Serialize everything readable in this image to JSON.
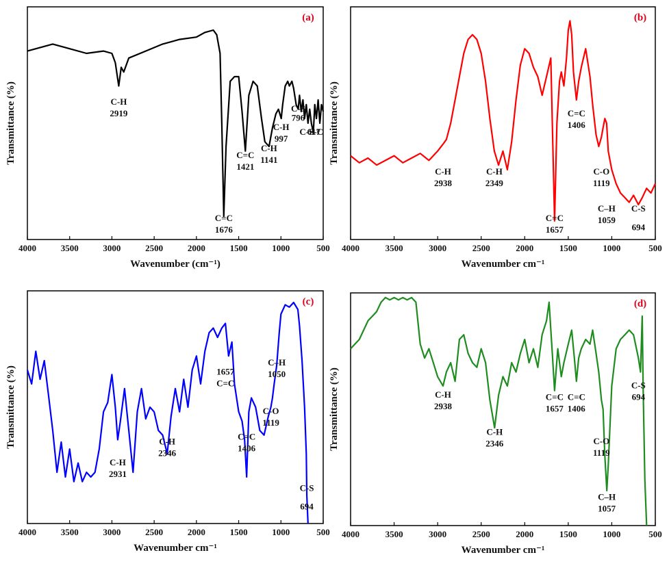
{
  "chart_data": [
    {
      "type": "line",
      "panel_label": "(a)",
      "color": "#000000",
      "xlabel": "Wavenumber (cm⁻¹)",
      "ylabel": "Transmittance (%)",
      "xlim": [
        4000,
        500
      ],
      "ylim": [
        0,
        100
      ],
      "xticks": [
        "4000",
        "3500",
        "3000",
        "2500",
        "2000",
        "1500",
        "1000",
        "500"
      ],
      "series": [
        {
          "x": [
            4000,
            3800,
            3700,
            3500,
            3300,
            3100,
            3000,
            2960,
            2919,
            2890,
            2860,
            2800,
            2600,
            2400,
            2200,
            2000,
            1900,
            1800,
            1760,
            1720,
            1700,
            1676,
            1650,
            1600,
            1550,
            1500,
            1460,
            1421,
            1380,
            1330,
            1280,
            1230,
            1190,
            1141,
            1100,
            1060,
            1030,
            997,
            980,
            950,
            920,
            900,
            870,
            850,
            820,
            796,
            780,
            760,
            740,
            720,
            700,
            680,
            660,
            640,
            617,
            600,
            580,
            560,
            540,
            520,
            500
          ],
          "y": [
            81,
            83,
            84,
            82,
            80,
            81,
            80,
            76,
            66,
            74,
            72,
            78,
            81,
            84,
            86,
            87,
            89,
            90,
            88,
            80,
            50,
            10,
            40,
            68,
            70,
            70,
            55,
            38,
            62,
            68,
            66,
            52,
            42,
            40,
            48,
            54,
            56,
            52,
            58,
            66,
            68,
            66,
            68,
            65,
            58,
            56,
            62,
            55,
            60,
            52,
            58,
            50,
            56,
            50,
            46,
            58,
            52,
            60,
            50,
            58,
            55
          ]
        }
      ],
      "annotations": [
        {
          "text": "C-H",
          "x": 2919,
          "y": 58
        },
        {
          "text": "2919",
          "x": 2919,
          "y": 53
        },
        {
          "text": "C=C",
          "x": 1676,
          "y": 8
        },
        {
          "text": "1676",
          "x": 1676,
          "y": 3
        },
        {
          "text": "C=C",
          "x": 1421,
          "y": 35
        },
        {
          "text": "1421",
          "x": 1421,
          "y": 30
        },
        {
          "text": "C-H",
          "x": 1141,
          "y": 38
        },
        {
          "text": "1141",
          "x": 1141,
          "y": 33
        },
        {
          "text": "C-H",
          "x": 997,
          "y": 47
        },
        {
          "text": "997",
          "x": 997,
          "y": 42
        },
        {
          "text": "C-S",
          "x": 796,
          "y": 55
        },
        {
          "text": "796",
          "x": 796,
          "y": 51
        },
        {
          "text": "C-S-C",
          "x": 640,
          "y": 45
        },
        {
          "text": "617",
          "x": 610,
          "y": 45
        }
      ]
    },
    {
      "type": "line",
      "panel_label": "(b)",
      "color": "#ff0000",
      "xlabel": "Wavenumber cm⁻¹",
      "ylabel": "Transmittance (%)",
      "xlim": [
        4000,
        500
      ],
      "ylim": [
        0,
        100
      ],
      "xticks": [
        "4000",
        "3500",
        "3000",
        "2500",
        "2000",
        "1500",
        "1000",
        "500"
      ],
      "series": [
        {
          "x": [
            4000,
            3900,
            3800,
            3700,
            3600,
            3500,
            3400,
            3300,
            3200,
            3100,
            3000,
            2938,
            2900,
            2850,
            2800,
            2750,
            2700,
            2650,
            2600,
            2550,
            2500,
            2450,
            2400,
            2349,
            2300,
            2250,
            2200,
            2150,
            2100,
            2050,
            2000,
            1950,
            1900,
            1850,
            1800,
            1750,
            1700,
            1657,
            1630,
            1600,
            1580,
            1550,
            1520,
            1500,
            1480,
            1460,
            1440,
            1406,
            1380,
            1350,
            1300,
            1250,
            1220,
            1180,
            1150,
            1119,
            1100,
            1080,
            1059,
            1040,
            1000,
            950,
            900,
            850,
            800,
            750,
            694,
            650,
            600,
            550,
            500
          ],
          "y": [
            36,
            33,
            35,
            32,
            34,
            36,
            33,
            35,
            37,
            34,
            38,
            41,
            43,
            50,
            60,
            70,
            80,
            86,
            88,
            86,
            80,
            68,
            52,
            38,
            32,
            38,
            30,
            42,
            60,
            75,
            82,
            80,
            74,
            70,
            62,
            70,
            78,
            8,
            50,
            68,
            72,
            66,
            78,
            90,
            94,
            88,
            72,
            60,
            68,
            74,
            82,
            70,
            58,
            45,
            40,
            44,
            48,
            52,
            50,
            38,
            30,
            24,
            20,
            18,
            16,
            19,
            15,
            18,
            22,
            20,
            24
          ]
        }
      ],
      "annotations": [
        {
          "text": "C-H",
          "x": 2938,
          "y": 28
        },
        {
          "text": "2938",
          "x": 2938,
          "y": 23
        },
        {
          "text": "C-H",
          "x": 2349,
          "y": 28
        },
        {
          "text": "2349",
          "x": 2349,
          "y": 23
        },
        {
          "text": "C=C",
          "x": 1657,
          "y": 8
        },
        {
          "text": "1657",
          "x": 1657,
          "y": 3
        },
        {
          "text": "C=C",
          "x": 1406,
          "y": 53
        },
        {
          "text": "1406",
          "x": 1406,
          "y": 48
        },
        {
          "text": "C-O",
          "x": 1119,
          "y": 28
        },
        {
          "text": "1119",
          "x": 1119,
          "y": 23
        },
        {
          "text": "C–H",
          "x": 1059,
          "y": 12
        },
        {
          "text": "1059",
          "x": 1059,
          "y": 7
        },
        {
          "text": "C-S",
          "x": 694,
          "y": 12
        },
        {
          "text": "694",
          "x": 694,
          "y": 4
        }
      ]
    },
    {
      "type": "line",
      "panel_label": "(c)",
      "color": "#0000ff",
      "xlabel": "Wavenumber cm⁻¹",
      "ylabel": "Transmittance (%)",
      "xlim": [
        4000,
        500
      ],
      "ylim": [
        0,
        100
      ],
      "xticks": [
        "4000",
        "3500",
        "3000",
        "2500",
        "2000",
        "1500",
        "1000",
        "500"
      ],
      "series": [
        {
          "x": [
            4000,
            3950,
            3900,
            3850,
            3800,
            3750,
            3700,
            3650,
            3600,
            3550,
            3500,
            3450,
            3400,
            3350,
            3300,
            3250,
            3200,
            3150,
            3100,
            3050,
            3000,
            2960,
            2931,
            2900,
            2850,
            2800,
            2750,
            2700,
            2650,
            2600,
            2550,
            2500,
            2450,
            2400,
            2346,
            2300,
            2250,
            2200,
            2150,
            2100,
            2050,
            2000,
            1950,
            1900,
            1850,
            1800,
            1750,
            1700,
            1657,
            1620,
            1580,
            1550,
            1500,
            1460,
            1430,
            1406,
            1380,
            1350,
            1300,
            1250,
            1200,
            1150,
            1119,
            1100,
            1080,
            1050,
            1020,
            1000,
            950,
            900,
            850,
            800,
            780,
            750,
            720,
            700,
            694,
            680
          ],
          "y": [
            66,
            60,
            74,
            62,
            70,
            55,
            40,
            22,
            35,
            20,
            32,
            18,
            26,
            18,
            22,
            20,
            22,
            32,
            48,
            52,
            64,
            50,
            36,
            44,
            58,
            40,
            22,
            48,
            58,
            45,
            50,
            48,
            40,
            38,
            30,
            46,
            58,
            48,
            62,
            50,
            66,
            72,
            60,
            74,
            82,
            84,
            80,
            84,
            86,
            72,
            78,
            60,
            48,
            44,
            36,
            20,
            48,
            54,
            50,
            40,
            38,
            46,
            50,
            54,
            60,
            68,
            82,
            90,
            94,
            93,
            95,
            92,
            85,
            70,
            50,
            30,
            12,
            0
          ]
        }
      ],
      "annotations": [
        {
          "text": "C-H",
          "x": 2931,
          "y": 25
        },
        {
          "text": "2931",
          "x": 2931,
          "y": 20
        },
        {
          "text": "C-H",
          "x": 2346,
          "y": 34
        },
        {
          "text": "2346",
          "x": 2346,
          "y": 29
        },
        {
          "text": "1657",
          "x": 1657,
          "y": 64
        },
        {
          "text": "C=C",
          "x": 1657,
          "y": 59
        },
        {
          "text": "C=C",
          "x": 1406,
          "y": 36
        },
        {
          "text": "1406",
          "x": 1406,
          "y": 31
        },
        {
          "text": "C-O",
          "x": 1119,
          "y": 47
        },
        {
          "text": "1119",
          "x": 1119,
          "y": 42
        },
        {
          "text": "C–H",
          "x": 1050,
          "y": 68
        },
        {
          "text": "1050",
          "x": 1050,
          "y": 63
        },
        {
          "text": "C-S",
          "x": 694,
          "y": 14
        },
        {
          "text": "694",
          "x": 694,
          "y": 6
        }
      ]
    },
    {
      "type": "line",
      "panel_label": "(d)",
      "color": "#1e8c1e",
      "xlabel": "Wavenumber cm⁻¹",
      "ylabel": "Transmittance (%)",
      "xlim": [
        4000,
        500
      ],
      "ylim": [
        0,
        100
      ],
      "xticks": [
        "4000",
        "3500",
        "3000",
        "2500",
        "2000",
        "1500",
        "1000",
        "500"
      ],
      "series": [
        {
          "x": [
            4000,
            3950,
            3900,
            3850,
            3800,
            3750,
            3700,
            3650,
            3600,
            3550,
            3500,
            3450,
            3400,
            3350,
            3300,
            3250,
            3200,
            3150,
            3100,
            3050,
            3000,
            2938,
            2900,
            2850,
            2800,
            2750,
            2700,
            2650,
            2600,
            2550,
            2500,
            2450,
            2400,
            2346,
            2300,
            2250,
            2200,
            2150,
            2100,
            2050,
            2000,
            1950,
            1900,
            1850,
            1800,
            1750,
            1720,
            1680,
            1657,
            1620,
            1580,
            1550,
            1500,
            1460,
            1430,
            1406,
            1380,
            1350,
            1300,
            1250,
            1220,
            1180,
            1150,
            1119,
            1100,
            1080,
            1057,
            1040,
            1000,
            950,
            900,
            850,
            800,
            750,
            694,
            670,
            650,
            640,
            620,
            600
          ],
          "y": [
            76,
            78,
            80,
            84,
            88,
            90,
            92,
            96,
            98,
            97,
            98,
            97,
            98,
            97,
            98,
            96,
            78,
            72,
            76,
            70,
            64,
            60,
            66,
            70,
            62,
            80,
            82,
            74,
            70,
            68,
            76,
            70,
            54,
            42,
            56,
            64,
            60,
            70,
            66,
            74,
            80,
            70,
            76,
            68,
            82,
            88,
            96,
            72,
            58,
            76,
            64,
            70,
            78,
            84,
            72,
            62,
            72,
            76,
            80,
            78,
            84,
            74,
            66,
            54,
            50,
            30,
            15,
            26,
            60,
            76,
            80,
            82,
            84,
            82,
            72,
            66,
            90,
            60,
            20,
            0
          ]
        }
      ],
      "annotations": [
        {
          "text": "C-H",
          "x": 2938,
          "y": 55
        },
        {
          "text": "2938",
          "x": 2938,
          "y": 50
        },
        {
          "text": "C-H",
          "x": 2346,
          "y": 39
        },
        {
          "text": "2346",
          "x": 2346,
          "y": 34
        },
        {
          "text": "C=C",
          "x": 1657,
          "y": 54
        },
        {
          "text": "1657",
          "x": 1657,
          "y": 49
        },
        {
          "text": "C=C",
          "x": 1406,
          "y": 54
        },
        {
          "text": "1406",
          "x": 1406,
          "y": 49
        },
        {
          "text": "C-O",
          "x": 1119,
          "y": 35
        },
        {
          "text": "1119",
          "x": 1119,
          "y": 30
        },
        {
          "text": "C–H",
          "x": 1057,
          "y": 11
        },
        {
          "text": "1057",
          "x": 1057,
          "y": 6
        },
        {
          "text": "C-S",
          "x": 694,
          "y": 59
        },
        {
          "text": "694",
          "x": 694,
          "y": 54
        }
      ]
    }
  ]
}
